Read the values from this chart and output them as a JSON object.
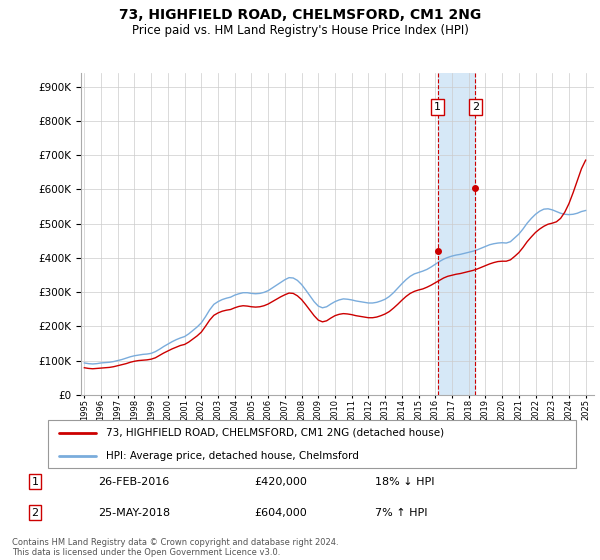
{
  "title": "73, HIGHFIELD ROAD, CHELMSFORD, CM1 2NG",
  "subtitle": "Price paid vs. HM Land Registry's House Price Index (HPI)",
  "ytick_values": [
    0,
    100000,
    200000,
    300000,
    400000,
    500000,
    600000,
    700000,
    800000,
    900000
  ],
  "ylim": [
    0,
    940000
  ],
  "xlim_start": 1994.8,
  "xlim_end": 2025.5,
  "hpi_color": "#7aacdc",
  "property_color": "#cc0000",
  "shade_color": "#d6e8f7",
  "transaction1_date": "26-FEB-2016",
  "transaction1_price": 420000,
  "transaction1_year": 2016.15,
  "transaction2_date": "25-MAY-2018",
  "transaction2_price": 604000,
  "transaction2_year": 2018.4,
  "transaction1_hpi_pct": "18% ↓ HPI",
  "transaction2_hpi_pct": "7% ↑ HPI",
  "legend_line1": "73, HIGHFIELD ROAD, CHELMSFORD, CM1 2NG (detached house)",
  "legend_line2": "HPI: Average price, detached house, Chelmsford",
  "footnote": "Contains HM Land Registry data © Crown copyright and database right 2024.\nThis data is licensed under the Open Government Licence v3.0.",
  "hpi_data": [
    [
      1995.0,
      93000
    ],
    [
      1995.25,
      91000
    ],
    [
      1995.5,
      90000
    ],
    [
      1995.75,
      91000
    ],
    [
      1996.0,
      93000
    ],
    [
      1996.25,
      94000
    ],
    [
      1996.5,
      95000
    ],
    [
      1996.75,
      97000
    ],
    [
      1997.0,
      100000
    ],
    [
      1997.25,
      103000
    ],
    [
      1997.5,
      107000
    ],
    [
      1997.75,
      111000
    ],
    [
      1998.0,
      114000
    ],
    [
      1998.25,
      116000
    ],
    [
      1998.5,
      118000
    ],
    [
      1998.75,
      119000
    ],
    [
      1999.0,
      121000
    ],
    [
      1999.25,
      126000
    ],
    [
      1999.5,
      133000
    ],
    [
      1999.75,
      141000
    ],
    [
      2000.0,
      148000
    ],
    [
      2000.25,
      155000
    ],
    [
      2000.5,
      161000
    ],
    [
      2000.75,
      166000
    ],
    [
      2001.0,
      170000
    ],
    [
      2001.25,
      178000
    ],
    [
      2001.5,
      188000
    ],
    [
      2001.75,
      198000
    ],
    [
      2002.0,
      210000
    ],
    [
      2002.25,
      228000
    ],
    [
      2002.5,
      248000
    ],
    [
      2002.75,
      264000
    ],
    [
      2003.0,
      272000
    ],
    [
      2003.25,
      278000
    ],
    [
      2003.5,
      282000
    ],
    [
      2003.75,
      285000
    ],
    [
      2004.0,
      291000
    ],
    [
      2004.25,
      295000
    ],
    [
      2004.5,
      298000
    ],
    [
      2004.75,
      298000
    ],
    [
      2005.0,
      296000
    ],
    [
      2005.25,
      295000
    ],
    [
      2005.5,
      296000
    ],
    [
      2005.75,
      299000
    ],
    [
      2006.0,
      304000
    ],
    [
      2006.25,
      312000
    ],
    [
      2006.5,
      320000
    ],
    [
      2006.75,
      328000
    ],
    [
      2007.0,
      336000
    ],
    [
      2007.25,
      342000
    ],
    [
      2007.5,
      341000
    ],
    [
      2007.75,
      334000
    ],
    [
      2008.0,
      322000
    ],
    [
      2008.25,
      306000
    ],
    [
      2008.5,
      289000
    ],
    [
      2008.75,
      272000
    ],
    [
      2009.0,
      259000
    ],
    [
      2009.25,
      254000
    ],
    [
      2009.5,
      257000
    ],
    [
      2009.75,
      265000
    ],
    [
      2010.0,
      272000
    ],
    [
      2010.25,
      277000
    ],
    [
      2010.5,
      280000
    ],
    [
      2010.75,
      279000
    ],
    [
      2011.0,
      277000
    ],
    [
      2011.25,
      274000
    ],
    [
      2011.5,
      272000
    ],
    [
      2011.75,
      270000
    ],
    [
      2012.0,
      268000
    ],
    [
      2012.25,
      268000
    ],
    [
      2012.5,
      270000
    ],
    [
      2012.75,
      274000
    ],
    [
      2013.0,
      279000
    ],
    [
      2013.25,
      287000
    ],
    [
      2013.5,
      298000
    ],
    [
      2013.75,
      311000
    ],
    [
      2014.0,
      324000
    ],
    [
      2014.25,
      336000
    ],
    [
      2014.5,
      346000
    ],
    [
      2014.75,
      353000
    ],
    [
      2015.0,
      357000
    ],
    [
      2015.25,
      361000
    ],
    [
      2015.5,
      366000
    ],
    [
      2015.75,
      373000
    ],
    [
      2016.0,
      381000
    ],
    [
      2016.25,
      389000
    ],
    [
      2016.5,
      396000
    ],
    [
      2016.75,
      401000
    ],
    [
      2017.0,
      405000
    ],
    [
      2017.25,
      408000
    ],
    [
      2017.5,
      410000
    ],
    [
      2017.75,
      413000
    ],
    [
      2018.0,
      416000
    ],
    [
      2018.25,
      419000
    ],
    [
      2018.5,
      423000
    ],
    [
      2018.75,
      428000
    ],
    [
      2019.0,
      433000
    ],
    [
      2019.25,
      438000
    ],
    [
      2019.5,
      441000
    ],
    [
      2019.75,
      443000
    ],
    [
      2020.0,
      444000
    ],
    [
      2020.25,
      443000
    ],
    [
      2020.5,
      447000
    ],
    [
      2020.75,
      458000
    ],
    [
      2021.0,
      469000
    ],
    [
      2021.25,
      484000
    ],
    [
      2021.5,
      501000
    ],
    [
      2021.75,
      515000
    ],
    [
      2022.0,
      527000
    ],
    [
      2022.25,
      536000
    ],
    [
      2022.5,
      542000
    ],
    [
      2022.75,
      543000
    ],
    [
      2023.0,
      540000
    ],
    [
      2023.25,
      535000
    ],
    [
      2023.5,
      530000
    ],
    [
      2023.75,
      527000
    ],
    [
      2024.0,
      526000
    ],
    [
      2024.25,
      527000
    ],
    [
      2024.5,
      530000
    ],
    [
      2024.75,
      535000
    ],
    [
      2025.0,
      538000
    ]
  ],
  "property_data": [
    [
      1995.0,
      79000
    ],
    [
      1995.25,
      77000
    ],
    [
      1995.5,
      76000
    ],
    [
      1995.75,
      77000
    ],
    [
      1996.0,
      78000
    ],
    [
      1996.25,
      79000
    ],
    [
      1996.5,
      80000
    ],
    [
      1996.75,
      82000
    ],
    [
      1997.0,
      85000
    ],
    [
      1997.25,
      88000
    ],
    [
      1997.5,
      91000
    ],
    [
      1997.75,
      95000
    ],
    [
      1998.0,
      98000
    ],
    [
      1998.25,
      100000
    ],
    [
      1998.5,
      101000
    ],
    [
      1998.75,
      102000
    ],
    [
      1999.0,
      104000
    ],
    [
      1999.25,
      108000
    ],
    [
      1999.5,
      115000
    ],
    [
      1999.75,
      122000
    ],
    [
      2000.0,
      128000
    ],
    [
      2000.25,
      134000
    ],
    [
      2000.5,
      139000
    ],
    [
      2000.75,
      144000
    ],
    [
      2001.0,
      147000
    ],
    [
      2001.25,
      154000
    ],
    [
      2001.5,
      163000
    ],
    [
      2001.75,
      172000
    ],
    [
      2002.0,
      183000
    ],
    [
      2002.25,
      200000
    ],
    [
      2002.5,
      218000
    ],
    [
      2002.75,
      232000
    ],
    [
      2003.0,
      239000
    ],
    [
      2003.25,
      244000
    ],
    [
      2003.5,
      247000
    ],
    [
      2003.75,
      249000
    ],
    [
      2004.0,
      254000
    ],
    [
      2004.25,
      258000
    ],
    [
      2004.5,
      260000
    ],
    [
      2004.75,
      259000
    ],
    [
      2005.0,
      257000
    ],
    [
      2005.25,
      256000
    ],
    [
      2005.5,
      257000
    ],
    [
      2005.75,
      260000
    ],
    [
      2006.0,
      265000
    ],
    [
      2006.25,
      272000
    ],
    [
      2006.5,
      279000
    ],
    [
      2006.75,
      286000
    ],
    [
      2007.0,
      292000
    ],
    [
      2007.25,
      297000
    ],
    [
      2007.5,
      296000
    ],
    [
      2007.75,
      289000
    ],
    [
      2008.0,
      278000
    ],
    [
      2008.25,
      263000
    ],
    [
      2008.5,
      247000
    ],
    [
      2008.75,
      231000
    ],
    [
      2009.0,
      218000
    ],
    [
      2009.25,
      213000
    ],
    [
      2009.5,
      216000
    ],
    [
      2009.75,
      224000
    ],
    [
      2010.0,
      231000
    ],
    [
      2010.25,
      235000
    ],
    [
      2010.5,
      237000
    ],
    [
      2010.75,
      236000
    ],
    [
      2011.0,
      234000
    ],
    [
      2011.25,
      231000
    ],
    [
      2011.5,
      229000
    ],
    [
      2011.75,
      227000
    ],
    [
      2012.0,
      225000
    ],
    [
      2012.25,
      225000
    ],
    [
      2012.5,
      227000
    ],
    [
      2012.75,
      231000
    ],
    [
      2013.0,
      236000
    ],
    [
      2013.25,
      243000
    ],
    [
      2013.5,
      253000
    ],
    [
      2013.75,
      264000
    ],
    [
      2014.0,
      276000
    ],
    [
      2014.25,
      287000
    ],
    [
      2014.5,
      296000
    ],
    [
      2014.75,
      302000
    ],
    [
      2015.0,
      306000
    ],
    [
      2015.25,
      309000
    ],
    [
      2015.5,
      314000
    ],
    [
      2015.75,
      320000
    ],
    [
      2016.0,
      327000
    ],
    [
      2016.25,
      334000
    ],
    [
      2016.5,
      341000
    ],
    [
      2016.75,
      346000
    ],
    [
      2017.0,
      349000
    ],
    [
      2017.25,
      352000
    ],
    [
      2017.5,
      354000
    ],
    [
      2017.75,
      357000
    ],
    [
      2018.0,
      360000
    ],
    [
      2018.25,
      363000
    ],
    [
      2018.5,
      367000
    ],
    [
      2018.75,
      372000
    ],
    [
      2019.0,
      377000
    ],
    [
      2019.25,
      382000
    ],
    [
      2019.5,
      386000
    ],
    [
      2019.75,
      389000
    ],
    [
      2020.0,
      390000
    ],
    [
      2020.25,
      390000
    ],
    [
      2020.5,
      394000
    ],
    [
      2020.75,
      404000
    ],
    [
      2021.0,
      415000
    ],
    [
      2021.25,
      430000
    ],
    [
      2021.5,
      447000
    ],
    [
      2021.75,
      461000
    ],
    [
      2022.0,
      474000
    ],
    [
      2022.25,
      484000
    ],
    [
      2022.5,
      492000
    ],
    [
      2022.75,
      498000
    ],
    [
      2023.0,
      501000
    ],
    [
      2023.25,
      505000
    ],
    [
      2023.5,
      515000
    ],
    [
      2023.75,
      533000
    ],
    [
      2024.0,
      558000
    ],
    [
      2024.25,
      590000
    ],
    [
      2024.5,
      625000
    ],
    [
      2024.75,
      660000
    ],
    [
      2025.0,
      685000
    ]
  ]
}
